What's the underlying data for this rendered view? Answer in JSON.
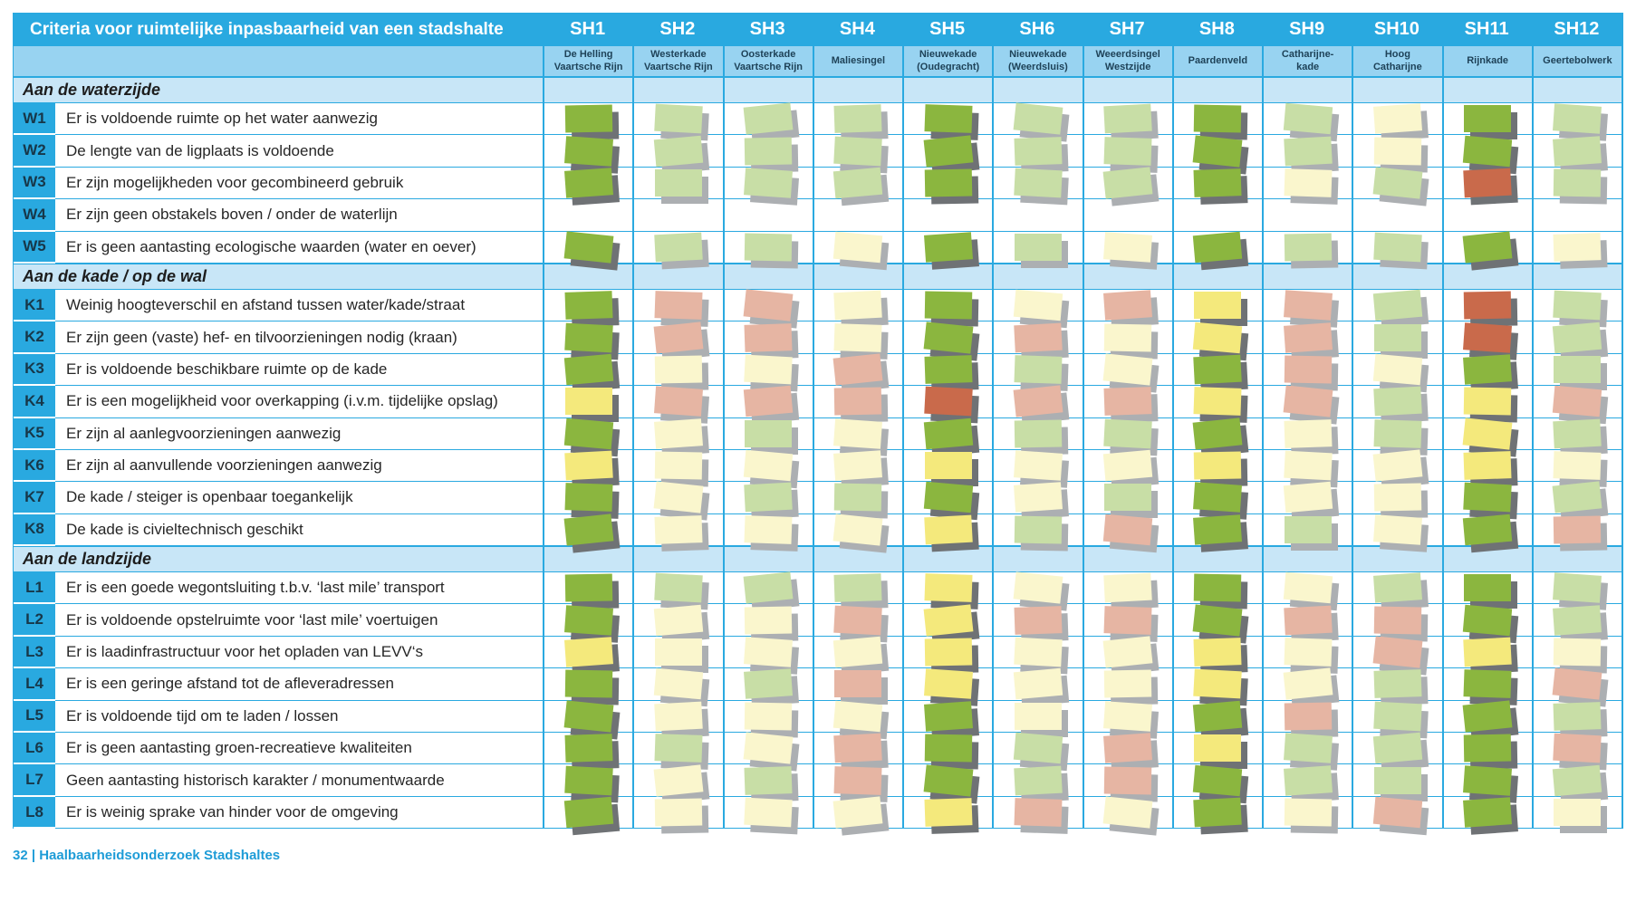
{
  "title": "Criteria voor ruimtelijke inpasbaarheid van een stadshalte",
  "footer": "32 | Haalbaarheidsonderzoek Stadshaltes",
  "columns": [
    {
      "id": "SH1",
      "location": "De Helling\nVaartsche Rijn"
    },
    {
      "id": "SH2",
      "location": "Westerkade\nVaartsche Rijn"
    },
    {
      "id": "SH3",
      "location": "Oosterkade\nVaartsche Rijn"
    },
    {
      "id": "SH4",
      "location": "Maliesingel"
    },
    {
      "id": "SH5",
      "location": "Nieuwekade\n(Oudegracht)"
    },
    {
      "id": "SH6",
      "location": "Nieuwekade\n(Weerdsluis)"
    },
    {
      "id": "SH7",
      "location": "Weeerdsingel\nWestzijde"
    },
    {
      "id": "SH8",
      "location": "Paardenveld"
    },
    {
      "id": "SH9",
      "location": "Catharijne-\nkade"
    },
    {
      "id": "SH10",
      "location": "Hoog\nCatharijne"
    },
    {
      "id": "SH11",
      "location": "Rijnkade"
    },
    {
      "id": "SH12",
      "location": "Geertebolwerk"
    }
  ],
  "palette": {
    "green": "#8BB63F",
    "lightgreen": "#C8DEA6",
    "paleyellow": "#FAF6CD",
    "yellow": "#F4E97C",
    "pink": "#E6B5A3",
    "red": "#C96A4B"
  },
  "ui": {
    "header_blue": "#29A9E0",
    "subheader_blue": "#98D3F1",
    "section_blue": "#C8E6F7",
    "grid_blue": "#2AA9E0"
  },
  "sections": [
    {
      "title": "Aan de waterzijde",
      "rows": [
        {
          "code": "W1",
          "criterion": "Er is voldoende ruimte op het water aanwezig",
          "cells": [
            "green",
            "lightgreen",
            "lightgreen",
            "lightgreen",
            "green",
            "lightgreen",
            "lightgreen",
            "green",
            "lightgreen",
            "paleyellow",
            "green",
            "lightgreen"
          ]
        },
        {
          "code": "W2",
          "criterion": "De lengte van de ligplaats is voldoende",
          "cells": [
            "green",
            "lightgreen",
            "lightgreen",
            "lightgreen",
            "green",
            "lightgreen",
            "lightgreen",
            "green",
            "lightgreen",
            "paleyellow",
            "green",
            "lightgreen"
          ]
        },
        {
          "code": "W3",
          "criterion": "Er zijn mogelijkheden voor gecombineerd gebruik",
          "cells": [
            "green",
            "lightgreen",
            "lightgreen",
            "lightgreen",
            "green",
            "lightgreen",
            "lightgreen",
            "green",
            "paleyellow",
            "lightgreen",
            "red",
            "lightgreen"
          ]
        },
        {
          "code": "W4",
          "criterion": "Er zijn geen obstakels boven / onder de waterlijn",
          "cells": [
            "",
            "",
            "",
            "",
            "",
            "",
            "",
            "",
            "",
            "",
            "",
            ""
          ]
        },
        {
          "code": "W5",
          "criterion": "Er is geen aantasting ecologische waarden (water en oever)",
          "cells": [
            "green",
            "lightgreen",
            "lightgreen",
            "paleyellow",
            "green",
            "lightgreen",
            "paleyellow",
            "green",
            "lightgreen",
            "lightgreen",
            "green",
            "paleyellow"
          ]
        }
      ]
    },
    {
      "title": "Aan de kade / op de wal",
      "rows": [
        {
          "code": "K1",
          "criterion": "Weinig hoogteverschil en afstand tussen water/kade/straat",
          "cells": [
            "green",
            "pink",
            "pink",
            "paleyellow",
            "green",
            "paleyellow",
            "pink",
            "yellow",
            "pink",
            "lightgreen",
            "red",
            "lightgreen"
          ]
        },
        {
          "code": "K2",
          "criterion": "Er zijn geen (vaste) hef- en tilvoorzieningen nodig (kraan)",
          "cells": [
            "green",
            "pink",
            "pink",
            "paleyellow",
            "green",
            "pink",
            "paleyellow",
            "yellow",
            "pink",
            "lightgreen",
            "red",
            "lightgreen"
          ]
        },
        {
          "code": "K3",
          "criterion": "Er is voldoende beschikbare ruimte op de kade",
          "cells": [
            "green",
            "paleyellow",
            "paleyellow",
            "pink",
            "green",
            "lightgreen",
            "paleyellow",
            "green",
            "pink",
            "paleyellow",
            "green",
            "lightgreen"
          ]
        },
        {
          "code": "K4",
          "criterion": "Er is een mogelijkheid voor overkapping (i.v.m. tijdelijke opslag)",
          "cells": [
            "yellow",
            "pink",
            "pink",
            "pink",
            "red",
            "pink",
            "pink",
            "yellow",
            "pink",
            "lightgreen",
            "yellow",
            "pink"
          ]
        },
        {
          "code": "K5",
          "criterion": "Er zijn al aanlegvoorzieningen aanwezig",
          "cells": [
            "green",
            "paleyellow",
            "lightgreen",
            "paleyellow",
            "green",
            "lightgreen",
            "lightgreen",
            "green",
            "paleyellow",
            "lightgreen",
            "yellow",
            "lightgreen"
          ]
        },
        {
          "code": "K6",
          "criterion": "Er zijn al aanvullende voorzieningen aanwezig",
          "cells": [
            "yellow",
            "paleyellow",
            "paleyellow",
            "paleyellow",
            "yellow",
            "paleyellow",
            "paleyellow",
            "yellow",
            "paleyellow",
            "paleyellow",
            "yellow",
            "paleyellow"
          ]
        },
        {
          "code": "K7",
          "criterion": "De kade / steiger is openbaar toegankelijk",
          "cells": [
            "green",
            "paleyellow",
            "lightgreen",
            "lightgreen",
            "green",
            "paleyellow",
            "lightgreen",
            "green",
            "paleyellow",
            "paleyellow",
            "green",
            "lightgreen"
          ]
        },
        {
          "code": "K8",
          "criterion": "De kade is civieltechnisch geschikt",
          "cells": [
            "green",
            "paleyellow",
            "paleyellow",
            "paleyellow",
            "yellow",
            "lightgreen",
            "pink",
            "green",
            "lightgreen",
            "paleyellow",
            "green",
            "pink"
          ]
        }
      ]
    },
    {
      "title": "Aan de landzijde",
      "rows": [
        {
          "code": "L1",
          "criterion": "Er is een goede wegontsluiting t.b.v. ‘last mile’ transport",
          "cells": [
            "green",
            "lightgreen",
            "lightgreen",
            "lightgreen",
            "yellow",
            "paleyellow",
            "paleyellow",
            "green",
            "paleyellow",
            "lightgreen",
            "green",
            "lightgreen"
          ]
        },
        {
          "code": "L2",
          "criterion": "Er is voldoende opstelruimte voor ‘last mile’ voertuigen",
          "cells": [
            "green",
            "paleyellow",
            "paleyellow",
            "pink",
            "yellow",
            "pink",
            "pink",
            "green",
            "pink",
            "pink",
            "green",
            "lightgreen"
          ]
        },
        {
          "code": "L3",
          "criterion": "Er is laadinfrastructuur voor het opladen van LEVV‘s",
          "cells": [
            "yellow",
            "paleyellow",
            "paleyellow",
            "paleyellow",
            "yellow",
            "paleyellow",
            "paleyellow",
            "yellow",
            "paleyellow",
            "pink",
            "yellow",
            "paleyellow"
          ]
        },
        {
          "code": "L4",
          "criterion": "Er is een geringe afstand tot de afleveradressen",
          "cells": [
            "green",
            "paleyellow",
            "lightgreen",
            "pink",
            "yellow",
            "paleyellow",
            "paleyellow",
            "yellow",
            "paleyellow",
            "lightgreen",
            "green",
            "pink"
          ]
        },
        {
          "code": "L5",
          "criterion": "Er is voldoende tijd om te laden / lossen",
          "cells": [
            "green",
            "paleyellow",
            "paleyellow",
            "paleyellow",
            "green",
            "paleyellow",
            "paleyellow",
            "green",
            "pink",
            "lightgreen",
            "green",
            "lightgreen"
          ]
        },
        {
          "code": "L6",
          "criterion": "Er is geen aantasting groen-recreatieve kwaliteiten",
          "cells": [
            "green",
            "lightgreen",
            "paleyellow",
            "pink",
            "green",
            "lightgreen",
            "pink",
            "yellow",
            "lightgreen",
            "lightgreen",
            "green",
            "pink"
          ]
        },
        {
          "code": "L7",
          "criterion": "Geen aantasting historisch karakter / monumentwaarde",
          "cells": [
            "green",
            "paleyellow",
            "lightgreen",
            "pink",
            "green",
            "lightgreen",
            "pink",
            "green",
            "lightgreen",
            "lightgreen",
            "green",
            "lightgreen"
          ]
        },
        {
          "code": "L8",
          "criterion": "Er is weinig sprake van hinder voor de omgeving",
          "cells": [
            "green",
            "paleyellow",
            "paleyellow",
            "paleyellow",
            "yellow",
            "pink",
            "paleyellow",
            "green",
            "paleyellow",
            "pink",
            "green",
            "paleyellow"
          ]
        }
      ]
    }
  ]
}
